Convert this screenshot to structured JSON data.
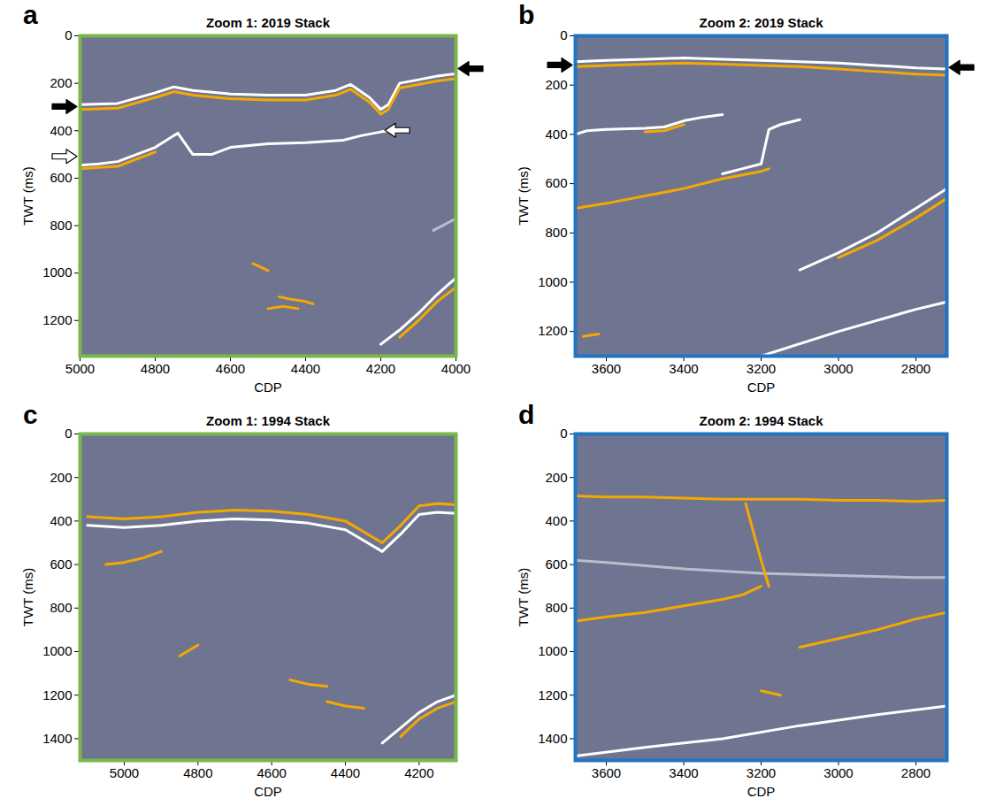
{
  "chart_data": [
    {
      "type": "line",
      "panel": "a",
      "title": "Zoom 1: 2019 Stack",
      "xlabel": "CDP",
      "ylabel": "TWT (ms)",
      "color": "#7ab648",
      "xlim": [
        5000,
        4000
      ],
      "xticks": [
        5000,
        4800,
        4600,
        4400,
        4200,
        4000
      ],
      "ylim": [
        0,
        1350
      ],
      "yticks": [
        0,
        200,
        400,
        600,
        800,
        1000,
        1200
      ],
      "arrows": [
        {
          "y": 300,
          "side": "left",
          "style": "filled"
        },
        {
          "y": 140,
          "side": "right",
          "style": "filled"
        },
        {
          "y": 510,
          "side": "left",
          "style": "open"
        },
        {
          "x": 4195,
          "y": 400,
          "side": "inside",
          "style": "white"
        }
      ],
      "series": [
        {
          "color": "#ffffff",
          "x": [
            5000,
            4900,
            4800,
            4750,
            4700,
            4600,
            4500,
            4400,
            4320,
            4280,
            4230,
            4200,
            4180,
            4150,
            4100,
            4050,
            4000
          ],
          "values": [
            290,
            285,
            240,
            215,
            230,
            245,
            250,
            250,
            230,
            205,
            260,
            310,
            290,
            200,
            185,
            170,
            160
          ]
        },
        {
          "color": "#f5a800",
          "x": [
            5000,
            4900,
            4800,
            4750,
            4700,
            4600,
            4500,
            4400,
            4320,
            4280,
            4230,
            4200,
            4180,
            4150,
            4100,
            4050,
            4000
          ],
          "values": [
            310,
            305,
            260,
            235,
            250,
            265,
            270,
            270,
            250,
            225,
            280,
            330,
            310,
            220,
            205,
            190,
            180
          ]
        },
        {
          "color": "#ffffff",
          "x": [
            5000,
            4950,
            4900,
            4850,
            4800,
            4760,
            4740,
            4700,
            4650,
            4600,
            4500,
            4400,
            4300,
            4250,
            4200,
            4180
          ],
          "values": [
            545,
            540,
            530,
            500,
            470,
            430,
            410,
            500,
            500,
            470,
            455,
            450,
            440,
            420,
            405,
            400
          ]
        },
        {
          "color": "#f5a800",
          "x": [
            5000,
            4950,
            4900,
            4850,
            4800
          ],
          "values": [
            560,
            555,
            550,
            520,
            490
          ]
        },
        {
          "color": "#f5a800",
          "x": [
            4540,
            4520,
            4500
          ],
          "values": [
            960,
            975,
            990
          ]
        },
        {
          "color": "#f5a800",
          "x": [
            4470,
            4440,
            4400,
            4380
          ],
          "values": [
            1100,
            1110,
            1120,
            1130
          ]
        },
        {
          "color": "#f5a800",
          "x": [
            4500,
            4460,
            4420
          ],
          "values": [
            1150,
            1140,
            1150
          ]
        },
        {
          "color": "#ffffff",
          "x": [
            4200,
            4150,
            4100,
            4050,
            4000
          ],
          "values": [
            1300,
            1240,
            1170,
            1090,
            1020
          ]
        },
        {
          "color": "#f5a800",
          "x": [
            4150,
            4100,
            4050,
            4000
          ],
          "values": [
            1270,
            1200,
            1120,
            1060
          ]
        },
        {
          "color": "#b9bdcc",
          "x": [
            4060,
            4000
          ],
          "values": [
            820,
            770
          ]
        }
      ]
    },
    {
      "type": "line",
      "panel": "b",
      "title": "Zoom 2: 2019 Stack",
      "xlabel": "CDP",
      "ylabel": "TWT (ms)",
      "color": "#1f75c4",
      "xlim": [
        3680,
        2720
      ],
      "xticks": [
        3600,
        3400,
        3200,
        3000,
        2800
      ],
      "ylim": [
        0,
        1300
      ],
      "yticks": [
        0,
        200,
        400,
        600,
        800,
        1000,
        1200
      ],
      "arrows": [
        {
          "y": 120,
          "side": "left",
          "style": "filled"
        },
        {
          "y": 130,
          "side": "right",
          "style": "filled"
        }
      ],
      "series": [
        {
          "color": "#ffffff",
          "x": [
            3680,
            3600,
            3500,
            3400,
            3300,
            3200,
            3100,
            3000,
            2900,
            2800,
            2720
          ],
          "values": [
            105,
            100,
            95,
            90,
            95,
            100,
            105,
            110,
            120,
            130,
            135
          ]
        },
        {
          "color": "#f5a800",
          "x": [
            3680,
            3600,
            3500,
            3400,
            3300,
            3200,
            3100,
            3000,
            2900,
            2800,
            2720
          ],
          "values": [
            125,
            120,
            115,
            110,
            115,
            120,
            125,
            135,
            145,
            155,
            160
          ]
        },
        {
          "color": "#ffffff",
          "x": [
            3680,
            3650,
            3600,
            3500,
            3450,
            3400,
            3350,
            3300
          ],
          "values": [
            400,
            385,
            380,
            375,
            370,
            345,
            330,
            320
          ]
        },
        {
          "color": "#f5a800",
          "x": [
            3500,
            3450,
            3400
          ],
          "values": [
            390,
            385,
            360
          ]
        },
        {
          "color": "#ffffff",
          "x": [
            3300,
            3250,
            3200,
            3180,
            3150,
            3100
          ],
          "values": [
            560,
            540,
            520,
            380,
            360,
            340
          ]
        },
        {
          "color": "#f5a800",
          "x": [
            3680,
            3600,
            3500,
            3400,
            3300,
            3200,
            3180
          ],
          "values": [
            700,
            680,
            650,
            620,
            580,
            550,
            540
          ]
        },
        {
          "color": "#ffffff",
          "x": [
            3100,
            3000,
            2900,
            2800,
            2720
          ],
          "values": [
            950,
            880,
            800,
            700,
            620
          ]
        },
        {
          "color": "#f5a800",
          "x": [
            3000,
            2900,
            2800,
            2720
          ],
          "values": [
            900,
            830,
            740,
            660
          ]
        },
        {
          "color": "#ffffff",
          "x": [
            3200,
            3000,
            2800,
            2720
          ],
          "values": [
            1300,
            1200,
            1110,
            1080
          ]
        },
        {
          "color": "#f5a800",
          "x": [
            3660,
            3620
          ],
          "values": [
            1220,
            1210
          ]
        }
      ]
    },
    {
      "type": "line",
      "panel": "c",
      "title": "Zoom 1: 1994 Stack",
      "xlabel": "CDP",
      "ylabel": "TWT (ms)",
      "color": "#7ab648",
      "xlim": [
        5120,
        4100
      ],
      "xticks": [
        5000,
        4800,
        4600,
        4400,
        4200
      ],
      "ylim": [
        0,
        1500
      ],
      "yticks": [
        0,
        200,
        400,
        600,
        800,
        1000,
        1200,
        1400
      ],
      "arrows": [],
      "series": [
        {
          "color": "#f5a800",
          "x": [
            5100,
            5000,
            4900,
            4800,
            4700,
            4600,
            4500,
            4400,
            4350,
            4300,
            4250,
            4200,
            4150,
            4100
          ],
          "values": [
            380,
            390,
            380,
            360,
            350,
            355,
            370,
            400,
            450,
            500,
            420,
            330,
            320,
            325
          ]
        },
        {
          "color": "#ffffff",
          "x": [
            5100,
            5000,
            4900,
            4800,
            4700,
            4600,
            4500,
            4400,
            4350,
            4300,
            4250,
            4200,
            4150,
            4100
          ],
          "values": [
            420,
            430,
            420,
            400,
            390,
            395,
            410,
            440,
            490,
            540,
            460,
            370,
            360,
            365
          ]
        },
        {
          "color": "#f5a800",
          "x": [
            5050,
            5000,
            4950,
            4900
          ],
          "values": [
            600,
            590,
            570,
            540
          ]
        },
        {
          "color": "#f5a800",
          "x": [
            4850,
            4820,
            4800
          ],
          "values": [
            1020,
            990,
            970
          ]
        },
        {
          "color": "#f5a800",
          "x": [
            4550,
            4500,
            4450
          ],
          "values": [
            1130,
            1150,
            1160
          ]
        },
        {
          "color": "#f5a800",
          "x": [
            4450,
            4400,
            4350
          ],
          "values": [
            1230,
            1250,
            1260
          ]
        },
        {
          "color": "#ffffff",
          "x": [
            4300,
            4250,
            4200,
            4150,
            4100
          ],
          "values": [
            1420,
            1350,
            1280,
            1230,
            1200
          ]
        },
        {
          "color": "#f5a800",
          "x": [
            4250,
            4200,
            4150,
            4100
          ],
          "values": [
            1390,
            1310,
            1260,
            1230
          ]
        }
      ]
    },
    {
      "type": "line",
      "panel": "d",
      "title": "Zoom 2: 1994 Stack",
      "xlabel": "CDP",
      "ylabel": "TWT (ms)",
      "color": "#1f75c4",
      "xlim": [
        3680,
        2720
      ],
      "xticks": [
        3600,
        3400,
        3200,
        3000,
        2800
      ],
      "ylim": [
        0,
        1500
      ],
      "yticks": [
        0,
        200,
        400,
        600,
        800,
        1000,
        1200,
        1400
      ],
      "arrows": [],
      "series": [
        {
          "color": "#f5a800",
          "x": [
            3680,
            3600,
            3500,
            3400,
            3300,
            3200,
            3100,
            3000,
            2900,
            2800,
            2720
          ],
          "values": [
            285,
            290,
            290,
            295,
            300,
            300,
            300,
            305,
            305,
            310,
            305
          ]
        },
        {
          "color": "#b9bdcc",
          "x": [
            3680,
            3600,
            3400,
            3200,
            3000,
            2800,
            2720
          ],
          "values": [
            580,
            590,
            620,
            640,
            650,
            660,
            660
          ]
        },
        {
          "color": "#f5a800",
          "x": [
            3680,
            3600,
            3500,
            3400,
            3300,
            3250,
            3200
          ],
          "values": [
            860,
            840,
            820,
            790,
            760,
            740,
            700
          ]
        },
        {
          "color": "#f5a800",
          "x": [
            3240,
            3220,
            3200,
            3180
          ],
          "values": [
            320,
            450,
            580,
            700
          ]
        },
        {
          "color": "#f5a800",
          "x": [
            3100,
            3000,
            2900,
            2800,
            2720
          ],
          "values": [
            980,
            940,
            900,
            850,
            820
          ]
        },
        {
          "color": "#ffffff",
          "x": [
            3680,
            3500,
            3300,
            3100,
            2900,
            2720
          ],
          "values": [
            1480,
            1440,
            1400,
            1340,
            1290,
            1250
          ]
        },
        {
          "color": "#f5a800",
          "x": [
            3200,
            3150
          ],
          "values": [
            1180,
            1200
          ]
        }
      ]
    }
  ]
}
